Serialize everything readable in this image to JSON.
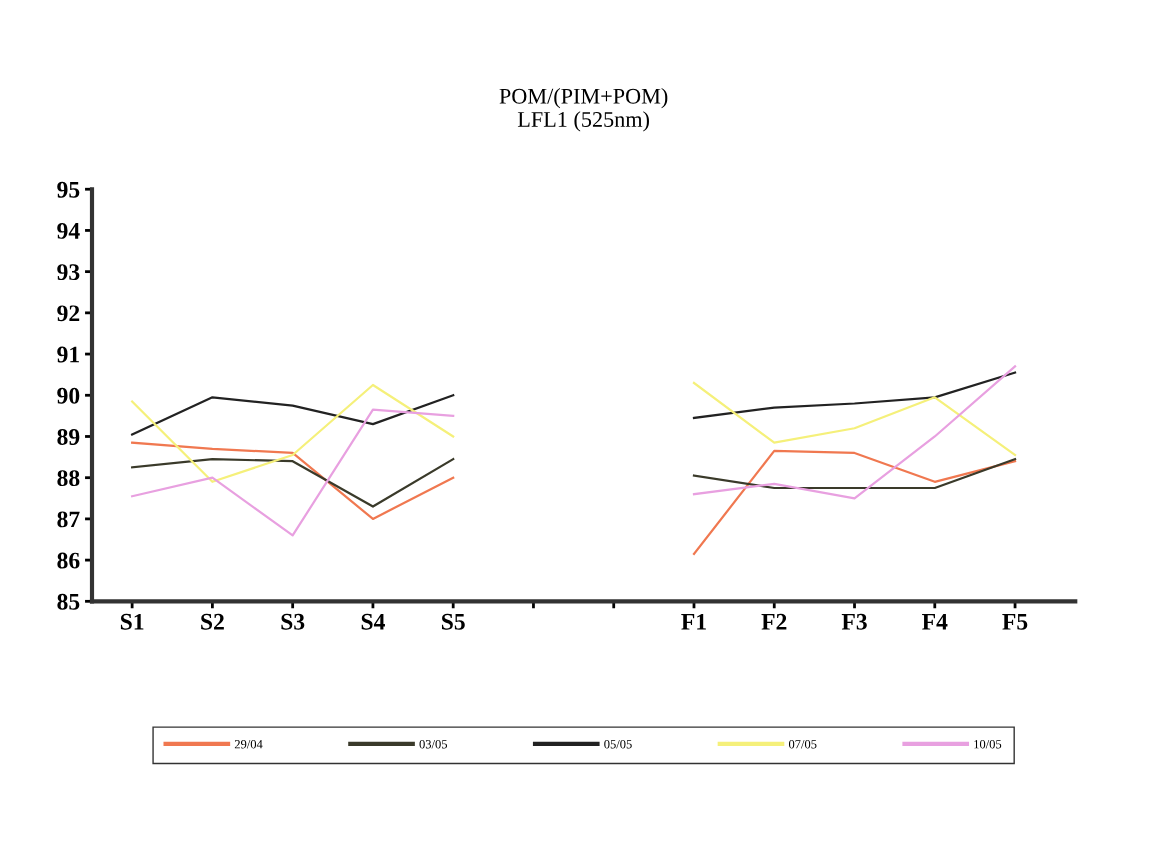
{
  "chart_data": {
    "type": "line",
    "title": "POM/(PIM+POM)\nLFL1 (525nm)",
    "categories": [
      "S1",
      "S2",
      "S3",
      "S4",
      "S5",
      null,
      null,
      "F1",
      "F2",
      "F3",
      "F4",
      "F5"
    ],
    "series": [
      {
        "name": "29/04",
        "color": "#f07850",
        "values": [
          88.85,
          88.7,
          88.6,
          87.0,
          88.0,
          null,
          null,
          86.15,
          88.65,
          88.6,
          87.9,
          88.4
        ]
      },
      {
        "name": "03/05",
        "color": "#3a3a2a",
        "values": [
          88.25,
          88.45,
          88.4,
          87.3,
          88.45,
          null,
          null,
          88.05,
          87.75,
          87.75,
          87.75,
          88.45
        ]
      },
      {
        "name": "05/05",
        "color": "#222222",
        "values": [
          89.05,
          89.95,
          89.75,
          89.3,
          90.0,
          null,
          null,
          89.45,
          89.7,
          89.8,
          89.95,
          90.55
        ]
      },
      {
        "name": "07/05",
        "color": "#f5f07a",
        "values": [
          89.85,
          87.9,
          88.55,
          90.25,
          89.0,
          null,
          null,
          90.3,
          88.85,
          89.2,
          89.95,
          88.55
        ]
      },
      {
        "name": "10/05",
        "color": "#e8a0e0",
        "values": [
          87.55,
          88.0,
          86.6,
          89.65,
          89.5,
          null,
          null,
          87.6,
          87.85,
          87.5,
          89.0,
          90.7
        ]
      }
    ],
    "ylim": [
      85,
      95
    ],
    "yticks": [
      85,
      86,
      87,
      88,
      89,
      90,
      91,
      92,
      93,
      94,
      95
    ],
    "grid": false,
    "legend": "bottom",
    "marker": "none",
    "line_style": "solid"
  }
}
